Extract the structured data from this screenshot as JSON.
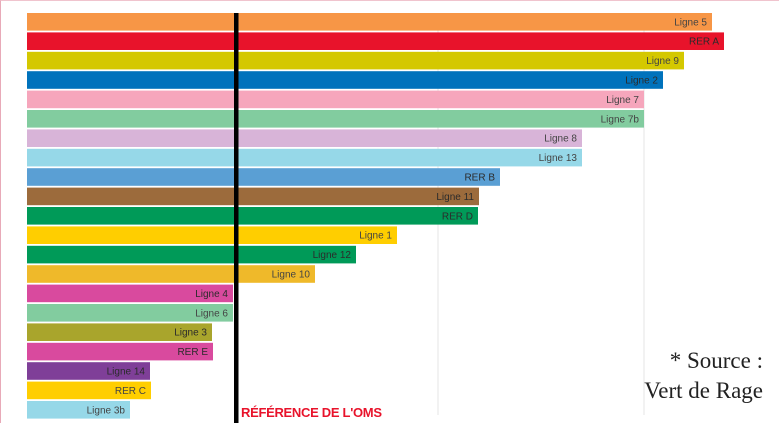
{
  "chart_data": {
    "type": "bar",
    "orientation": "horizontal",
    "title": "",
    "xlabel": "",
    "ylabel": "",
    "grid": true,
    "xlim": [
      0,
      700
    ],
    "gridlines_x": [
      211,
      411,
      617
    ],
    "categories": [
      "Ligne 5",
      "RER A",
      "Ligne 9",
      "Ligne 2",
      "Ligne 7",
      "Ligne 7b",
      "Ligne 8",
      "Ligne 13",
      "RER B",
      "Ligne 11",
      "RER D",
      "Ligne 1",
      "Ligne 12",
      "Ligne 10",
      "Ligne 4",
      "Ligne 6",
      "Ligne 3",
      "RER E",
      "Ligne 14",
      "RER C",
      "Ligne 3b"
    ],
    "values": [
      685,
      697,
      657,
      636,
      617,
      617,
      555,
      555,
      473,
      452,
      451,
      370,
      329,
      288,
      206,
      206,
      185,
      186,
      123,
      124,
      103
    ],
    "colors": [
      "#f79646",
      "#e8132b",
      "#d4c800",
      "#0072bc",
      "#f6a6bc",
      "#82cc9f",
      "#d8b4d8",
      "#96d8e8",
      "#5a9fd4",
      "#9c6b3c",
      "#009a58",
      "#ffce00",
      "#009a58",
      "#efb92a",
      "#d94a9e",
      "#82cc9f",
      "#a9a52c",
      "#d94a9e",
      "#7f3f98",
      "#ffce00",
      "#96d8e8"
    ],
    "reference": {
      "value": 207,
      "label": "RÉFÉRENCE DE L'OMS",
      "color": "#000000",
      "label_color": "#e8132b"
    }
  },
  "source_note": {
    "line1": "* Source :",
    "line2": "Vert de Rage"
  }
}
